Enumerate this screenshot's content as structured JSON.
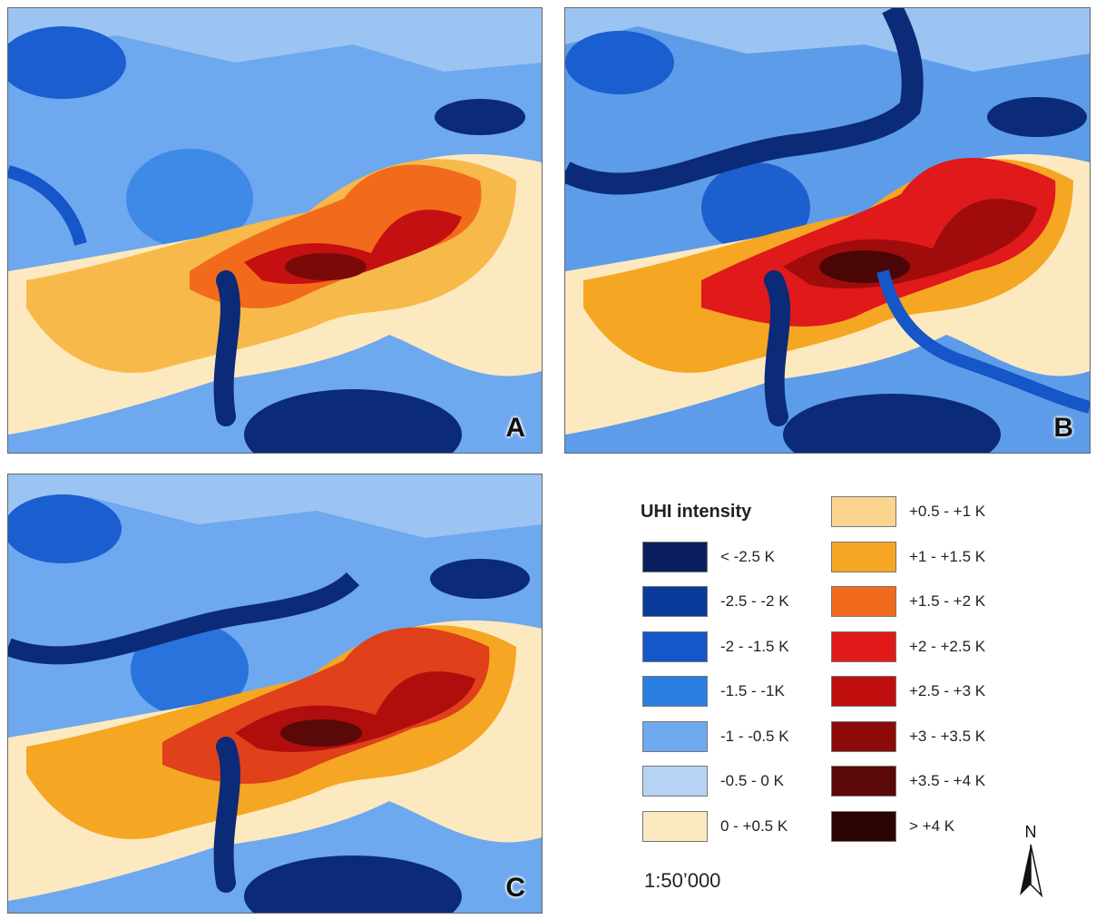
{
  "panels": [
    {
      "letter": "A"
    },
    {
      "letter": "B"
    },
    {
      "letter": "C"
    }
  ],
  "legend": {
    "title": "UHI intensity",
    "classes": [
      {
        "label": "< -2.5 K",
        "color": "#0b1f5e"
      },
      {
        "label": "-2.5 - -2 K",
        "color": "#0a3a9a"
      },
      {
        "label": "-2 - -1.5 K",
        "color": "#1556c8"
      },
      {
        "label": "-1.5 - -1K",
        "color": "#2a7fe0"
      },
      {
        "label": "-1 - -0.5 K",
        "color": "#6eaaf0"
      },
      {
        "label": "-0.5 - 0 K",
        "color": "#b6d3f5"
      },
      {
        "label": "0 - +0.5 K",
        "color": "#fde9c0"
      },
      {
        "label": "+0.5 - +1 K",
        "color": "#fbd58f"
      },
      {
        "label": "+1 - +1.5 K",
        "color": "#f5a623"
      },
      {
        "label": "+1.5 - +2 K",
        "color": "#f26a1b"
      },
      {
        "label": "+2 - +2.5 K",
        "color": "#e0191a"
      },
      {
        "label": "+2.5 - +3 K",
        "color": "#c00e0e"
      },
      {
        "label": "+3 - +3.5 K",
        "color": "#8e0b0b"
      },
      {
        "label": "+3.5 - +4 K",
        "color": "#5a0808"
      },
      {
        "label": "> +4 K",
        "color": "#2b0303"
      }
    ]
  },
  "scale": "1:50’000",
  "north": "N"
}
